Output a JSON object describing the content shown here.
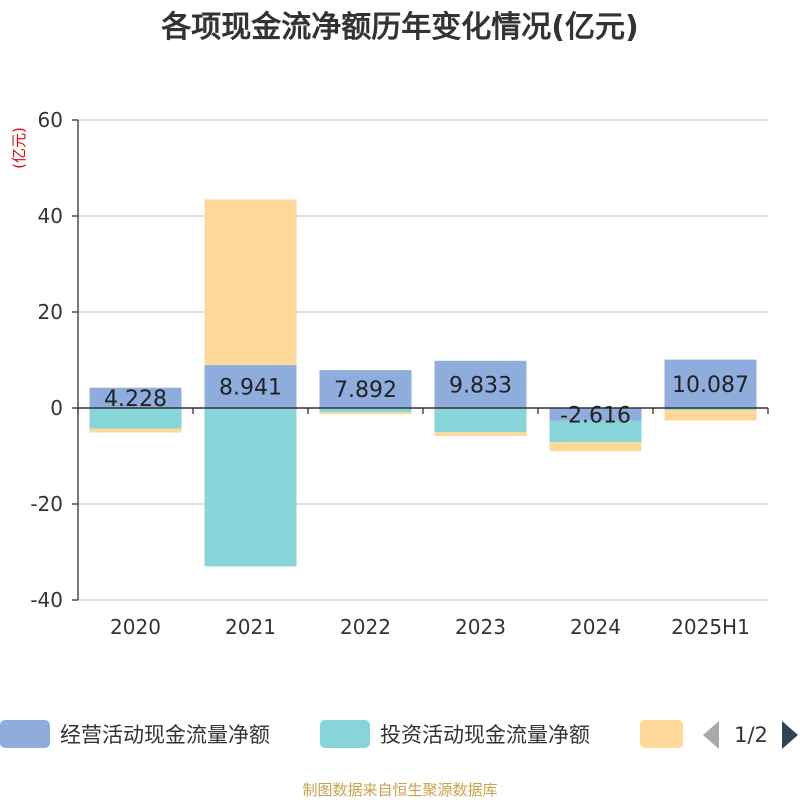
{
  "chart_data": {
    "type": "bar",
    "stacked": true,
    "title": "各项现金流净额历年变化情况(亿元)",
    "unit_label": "(亿元)",
    "categories": [
      "2020",
      "2021",
      "2022",
      "2023",
      "2024",
      "2025H1"
    ],
    "ylim": [
      -40,
      60
    ],
    "yticks": [
      60,
      40,
      20,
      0,
      -20,
      -40
    ],
    "grid": true,
    "series": [
      {
        "name": "经营活动现金流量净额",
        "color": "#8eaddc",
        "values": [
          4.228,
          8.941,
          7.892,
          9.833,
          -2.616,
          10.087
        ]
      },
      {
        "name": "投资活动现金流量净额",
        "color": "#87d5d8",
        "values": [
          -4.3,
          -33.0,
          -0.9,
          -5.0,
          -4.5,
          -0.4
        ]
      },
      {
        "name": "",
        "color": "#fdd898",
        "values": [
          -0.8,
          34.5,
          -0.4,
          -0.8,
          -1.9,
          -2.2
        ]
      }
    ],
    "data_labels": [
      "4.228",
      "8.941",
      "7.892",
      "9.833",
      "-2.616",
      "10.087"
    ],
    "legend": {
      "placement": "bottom",
      "page": "1/2"
    },
    "source": "制图数据来自恒生聚源数据库"
  }
}
